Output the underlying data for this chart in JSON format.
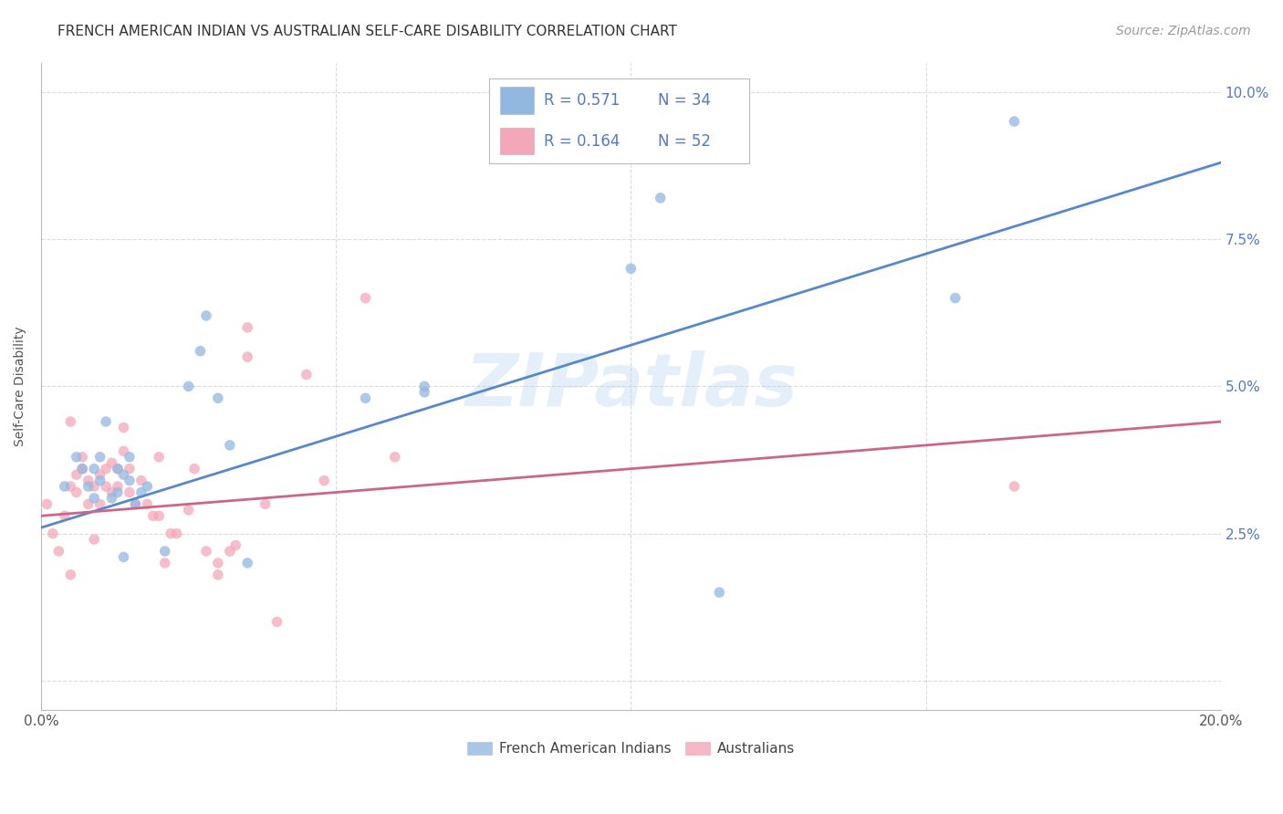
{
  "title": "FRENCH AMERICAN INDIAN VS AUSTRALIAN SELF-CARE DISABILITY CORRELATION CHART",
  "source": "Source: ZipAtlas.com",
  "ylabel": "Self-Care Disability",
  "xlim": [
    0,
    0.2
  ],
  "ylim": [
    -0.005,
    0.105
  ],
  "xticks": [
    0.0,
    0.05,
    0.1,
    0.15,
    0.2
  ],
  "xticklabels": [
    "0.0%",
    "",
    "",
    "",
    "20.0%"
  ],
  "yticks": [
    0.0,
    0.025,
    0.05,
    0.075,
    0.1
  ],
  "yticklabels": [
    "",
    "2.5%",
    "5.0%",
    "7.5%",
    "10.0%"
  ],
  "blue_color": "#93B8E0",
  "pink_color": "#F4A7B9",
  "blue_line_color": "#5588CC",
  "pink_line_color": "#CC6688",
  "legend_text_color": "#5577CC",
  "legend_label_blue": "French American Indians",
  "legend_label_pink": "Australians",
  "watermark": "ZIPatlas",
  "blue_scatter_x": [
    0.004,
    0.006,
    0.007,
    0.008,
    0.009,
    0.009,
    0.01,
    0.01,
    0.011,
    0.012,
    0.013,
    0.013,
    0.014,
    0.014,
    0.015,
    0.015,
    0.016,
    0.017,
    0.018,
    0.021,
    0.025,
    0.027,
    0.028,
    0.03,
    0.032,
    0.035,
    0.055,
    0.065,
    0.065,
    0.1,
    0.105,
    0.115,
    0.155,
    0.165
  ],
  "blue_scatter_y": [
    0.033,
    0.038,
    0.036,
    0.033,
    0.031,
    0.036,
    0.034,
    0.038,
    0.044,
    0.031,
    0.032,
    0.036,
    0.021,
    0.035,
    0.038,
    0.034,
    0.03,
    0.032,
    0.033,
    0.022,
    0.05,
    0.056,
    0.062,
    0.048,
    0.04,
    0.02,
    0.048,
    0.05,
    0.049,
    0.07,
    0.082,
    0.015,
    0.065,
    0.095
  ],
  "pink_scatter_x": [
    0.001,
    0.002,
    0.003,
    0.004,
    0.005,
    0.005,
    0.006,
    0.006,
    0.007,
    0.007,
    0.008,
    0.008,
    0.009,
    0.009,
    0.01,
    0.01,
    0.011,
    0.011,
    0.012,
    0.012,
    0.013,
    0.013,
    0.014,
    0.014,
    0.015,
    0.015,
    0.016,
    0.017,
    0.018,
    0.019,
    0.02,
    0.02,
    0.021,
    0.022,
    0.023,
    0.025,
    0.026,
    0.028,
    0.03,
    0.03,
    0.032,
    0.033,
    0.035,
    0.035,
    0.038,
    0.04,
    0.045,
    0.048,
    0.055,
    0.06,
    0.165,
    0.005
  ],
  "pink_scatter_y": [
    0.03,
    0.025,
    0.022,
    0.028,
    0.033,
    0.044,
    0.032,
    0.035,
    0.036,
    0.038,
    0.03,
    0.034,
    0.024,
    0.033,
    0.03,
    0.035,
    0.033,
    0.036,
    0.032,
    0.037,
    0.033,
    0.036,
    0.039,
    0.043,
    0.032,
    0.036,
    0.03,
    0.034,
    0.03,
    0.028,
    0.028,
    0.038,
    0.02,
    0.025,
    0.025,
    0.029,
    0.036,
    0.022,
    0.018,
    0.02,
    0.022,
    0.023,
    0.06,
    0.055,
    0.03,
    0.01,
    0.052,
    0.034,
    0.065,
    0.038,
    0.033,
    0.018
  ],
  "blue_line_x": [
    0.0,
    0.2
  ],
  "blue_line_y": [
    0.026,
    0.088
  ],
  "pink_line_x": [
    0.0,
    0.2
  ],
  "pink_line_y": [
    0.028,
    0.044
  ],
  "grid_color": "#CCCCCC",
  "background_color": "#FFFFFF",
  "title_fontsize": 11,
  "tick_fontsize": 11,
  "source_fontsize": 10,
  "legend_fontsize": 12,
  "marker_size": 70
}
